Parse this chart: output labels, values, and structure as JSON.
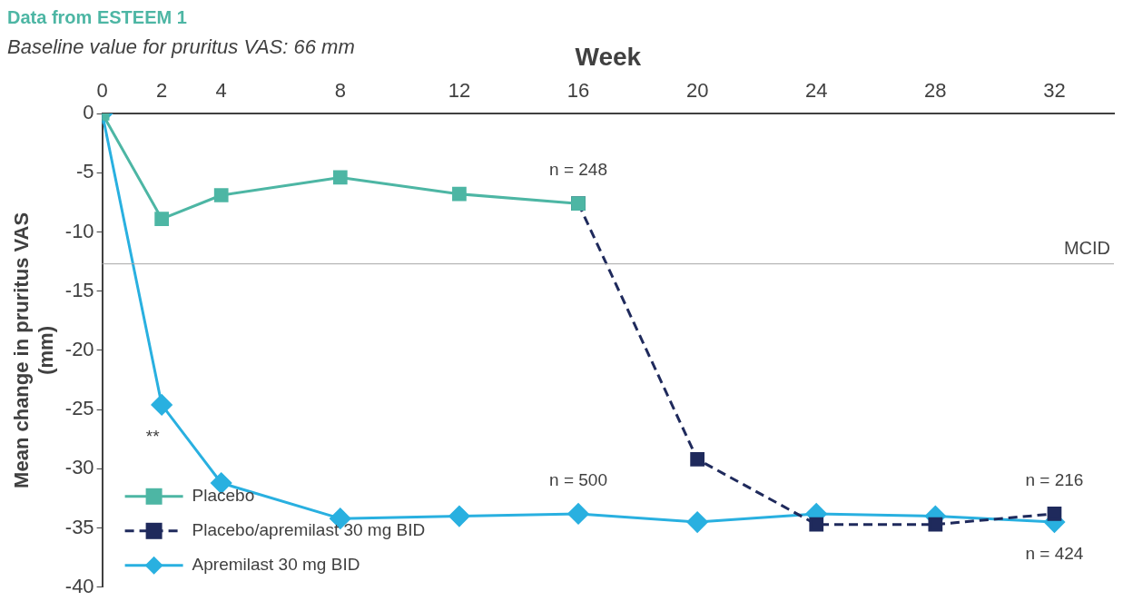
{
  "chart_data": {
    "type": "line",
    "title": "Data from ESTEEM 1",
    "subtitle": "Baseline value for pruritus VAS: 66 mm",
    "xlabel": "Week",
    "ylabel": "Mean change in pruritus VAS\n(mm)",
    "xlim": [
      0,
      34
    ],
    "xticks": [
      0,
      2,
      4,
      8,
      12,
      16,
      20,
      24,
      28,
      32
    ],
    "ylim": [
      -40,
      0
    ],
    "yticks": [
      0,
      -5,
      -10,
      -15,
      -20,
      -25,
      -30,
      -35,
      -40
    ],
    "grid": false,
    "legend": "bottom left",
    "series": [
      {
        "name": "Placebo",
        "color": "#4db6a4",
        "marker": "square",
        "line_style": "solid",
        "x": [
          0,
          2,
          4,
          8,
          12,
          16
        ],
        "values": [
          0,
          -8.9,
          -6.9,
          -5.4,
          -6.8,
          -7.6
        ]
      },
      {
        "name": "Placebo/apremilast 30 mg BID",
        "color": "#1f2a5c",
        "marker": "square",
        "line_style": "dashed",
        "x": [
          16,
          20,
          24,
          28,
          32
        ],
        "values": [
          -7.6,
          -29.2,
          -34.7,
          -34.7,
          -33.8
        ]
      },
      {
        "name": "Apremilast 30 mg BID",
        "color": "#29b0e0",
        "marker": "diamond",
        "line_style": "solid",
        "x": [
          0,
          2,
          4,
          8,
          12,
          16,
          20,
          24,
          28,
          32
        ],
        "values": [
          0,
          -24.6,
          -31.2,
          -34.2,
          -34.0,
          -33.8,
          -34.5,
          -33.8,
          -34.0,
          -34.5
        ]
      }
    ],
    "ref_lines": [
      {
        "axis": "y",
        "value": -12.7,
        "label": "MCID",
        "color": "#a6a6a6"
      }
    ],
    "annotations": [
      {
        "text": "n = 248",
        "x": 16,
        "y": -7.6
      },
      {
        "text": "n = 500",
        "x": 16,
        "y": -33.8
      },
      {
        "text": "n = 216",
        "x": 32,
        "y": -33.8
      },
      {
        "text": "n = 424",
        "x": 32,
        "y": -34.5
      },
      {
        "text": "**",
        "x": 2,
        "y": -24.6
      }
    ]
  }
}
